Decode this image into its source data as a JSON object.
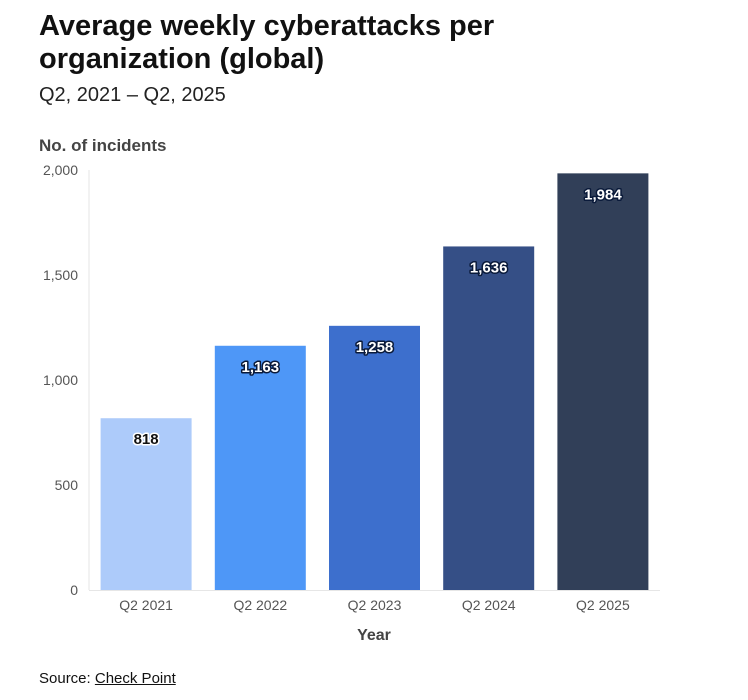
{
  "chart_data": {
    "type": "bar",
    "title": "Average weekly cyberattacks per organization (global)",
    "subtitle": "Q2, 2021 – Q2, 2025",
    "ylabel": "No. of incidents",
    "xlabel": "Year",
    "categories": [
      "Q2 2021",
      "Q2 2022",
      "Q2 2023",
      "Q2 2024",
      "Q2 2025"
    ],
    "values": [
      818,
      1163,
      1258,
      1636,
      1984
    ],
    "value_labels": [
      "818",
      "1,163",
      "1,258",
      "1,636",
      "1,984"
    ],
    "bar_colors": [
      "#adcbfa",
      "#4e97f7",
      "#3d6fcd",
      "#354f86",
      "#313f58"
    ],
    "ylim": [
      0,
      2000
    ],
    "yticks": [
      0,
      500,
      1000,
      1500,
      2000
    ],
    "ytick_labels": [
      "0",
      "500",
      "1,000",
      "1,500",
      "2,000"
    ],
    "grid": false,
    "legend": "none"
  },
  "source": {
    "prefix": "Source:",
    "link_text": "Check Point"
  }
}
